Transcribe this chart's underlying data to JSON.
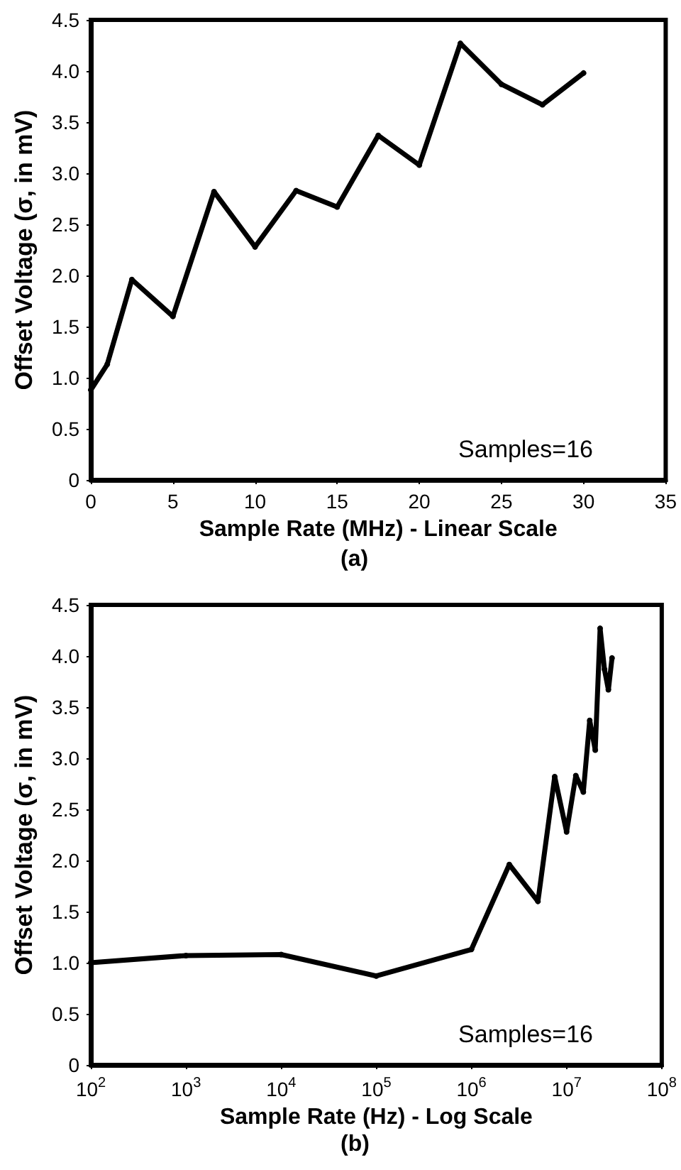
{
  "chart_data": [
    {
      "type": "line",
      "xlabel": "Sample Rate (MHz) - Linear Scale",
      "ylabel": "Offset Voltage (σ, in mV)",
      "annotations": [
        "Samples=16",
        "(a)"
      ],
      "x": [
        0,
        1,
        2.5,
        5,
        7.5,
        10,
        12.5,
        15,
        17.5,
        20,
        22.5,
        25,
        27.5,
        30
      ],
      "series": [
        {
          "color": "#000000",
          "values": [
            0.88,
            1.13,
            1.96,
            1.6,
            2.82,
            2.28,
            2.83,
            2.67,
            3.37,
            3.08,
            4.27,
            3.87,
            3.67,
            3.98
          ]
        }
      ],
      "xlim": [
        0,
        35
      ],
      "xticks": [
        0,
        5,
        10,
        15,
        20,
        25,
        30,
        35
      ],
      "ylim": [
        0,
        4.5
      ],
      "yticks": [
        0,
        0.5,
        {
          "value": 1,
          "label": "1.0"
        },
        1.5,
        {
          "value": 2,
          "label": "2.0"
        },
        2.5,
        {
          "value": 3,
          "label": "3.0"
        },
        3.5,
        {
          "value": 4,
          "label": "4.0"
        },
        4.5
      ],
      "grid": false,
      "marker": "circle",
      "line_style": "solid"
    },
    {
      "type": "line",
      "xlabel": "Sample Rate (Hz) - Log Scale",
      "ylabel": "Offset Voltage (σ, in mV)",
      "annotations": [
        "Samples=16",
        "(b)"
      ],
      "x": [
        100,
        1000,
        10000,
        100000,
        1000000,
        2500000,
        5000000,
        7500000,
        10000000,
        12500000,
        15000000,
        17500000,
        20000000,
        22500000,
        25000000,
        27500000,
        30000000
      ],
      "series": [
        {
          "color": "#000000",
          "values": [
            1.0,
            1.07,
            1.08,
            0.87,
            1.13,
            1.96,
            1.6,
            2.82,
            2.28,
            2.83,
            2.67,
            3.37,
            3.08,
            4.27,
            3.87,
            3.67,
            3.98
          ]
        }
      ],
      "log": "x",
      "xlim": [
        100,
        100000000
      ],
      "xticks": [
        {
          "value": 100,
          "label": "10$^{2}$"
        },
        {
          "value": 1000,
          "label": "10$^{3}$"
        },
        {
          "value": 10000,
          "label": "10$^{4}$"
        },
        {
          "value": 100000,
          "label": "10$^{5}$"
        },
        {
          "value": 1000000,
          "label": "10$^{6}$"
        },
        {
          "value": 10000000,
          "label": "10$^{7}$"
        },
        {
          "value": 100000000,
          "label": "10$^{8}$"
        }
      ],
      "ylim": [
        0,
        4.5
      ],
      "yticks": [
        0,
        0.5,
        {
          "value": 1,
          "label": "1.0"
        },
        1.5,
        {
          "value": 2,
          "label": "2.0"
        },
        2.5,
        {
          "value": 3,
          "label": "3.0"
        },
        3.5,
        {
          "value": 4,
          "label": "4.0"
        },
        4.5
      ],
      "grid": false,
      "marker": "circle",
      "line_style": "solid"
    }
  ]
}
